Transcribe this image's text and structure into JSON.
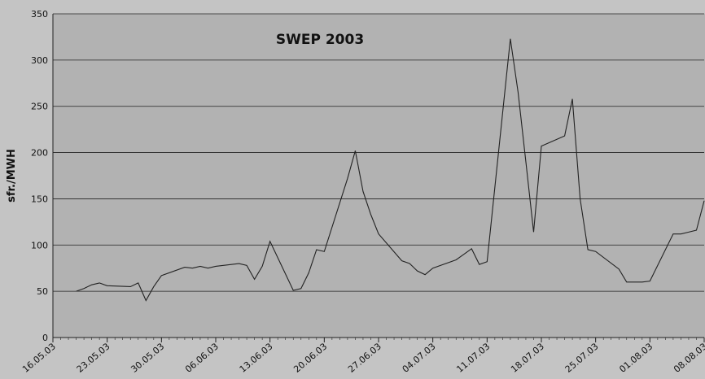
{
  "chart_data": {
    "type": "line",
    "title": "SWEP  2003",
    "y_label": "sfr./MWH",
    "x": [
      "19.05.03",
      "20.05.03",
      "21.05.03",
      "22.05.03",
      "23.05.03",
      "26.05.03",
      "27.05.03",
      "28.05.03",
      "29.05.03",
      "30.05.03",
      "02.06.03",
      "03.06.03",
      "04.06.03",
      "05.06.03",
      "06.06.03",
      "09.06.03",
      "10.06.03",
      "11.06.03",
      "12.06.03",
      "13.06.03",
      "16.06.03",
      "17.06.03",
      "18.06.03",
      "19.06.03",
      "20.06.03",
      "23.06.03",
      "24.06.03",
      "25.06.03",
      "26.06.03",
      "27.06.03",
      "30.06.03",
      "01.07.03",
      "02.07.03",
      "03.07.03",
      "04.07.03",
      "07.07.03",
      "08.07.03",
      "09.07.03",
      "10.07.03",
      "11.07.03",
      "14.07.03",
      "15.07.03",
      "16.07.03",
      "17.07.03",
      "18.07.03",
      "21.07.03",
      "22.07.03",
      "23.07.03",
      "24.07.03",
      "25.07.03",
      "28.07.03",
      "29.07.03",
      "30.07.03",
      "31.07.03",
      "01.08.03",
      "04.08.03",
      "05.08.03",
      "06.08.03",
      "07.08.03",
      "08.08.03"
    ],
    "series": [
      {
        "name": "SWEP",
        "color": "#222222",
        "values": [
          50,
          53,
          57,
          59,
          56,
          55,
          59,
          40,
          55,
          67,
          76,
          75,
          77,
          75,
          77,
          80,
          78,
          63,
          77,
          104,
          51,
          53,
          70,
          95,
          93,
          172,
          202,
          158,
          133,
          112,
          83,
          80,
          72,
          68,
          75,
          84,
          90,
          96,
          79,
          82,
          323,
          265,
          190,
          114,
          207,
          218,
          258,
          150,
          95,
          93,
          74,
          60,
          60,
          60,
          61,
          112,
          112,
          114,
          116,
          148
        ]
      }
    ],
    "xlim": [
      "16.05.03",
      "08.08.03"
    ],
    "xticks": [
      "16.05.03",
      "23.05.03",
      "30.05.03",
      "06.06.03",
      "13.06.03",
      "20.06.03",
      "27.06.03",
      "04.07.03",
      "11.07.03",
      "18.07.03",
      "25.07.03",
      "01.08.03",
      "08.08.03"
    ],
    "ylim": [
      0,
      350
    ],
    "yticks": [
      0,
      50,
      100,
      150,
      200,
      250,
      300,
      350
    ],
    "grid": true
  }
}
